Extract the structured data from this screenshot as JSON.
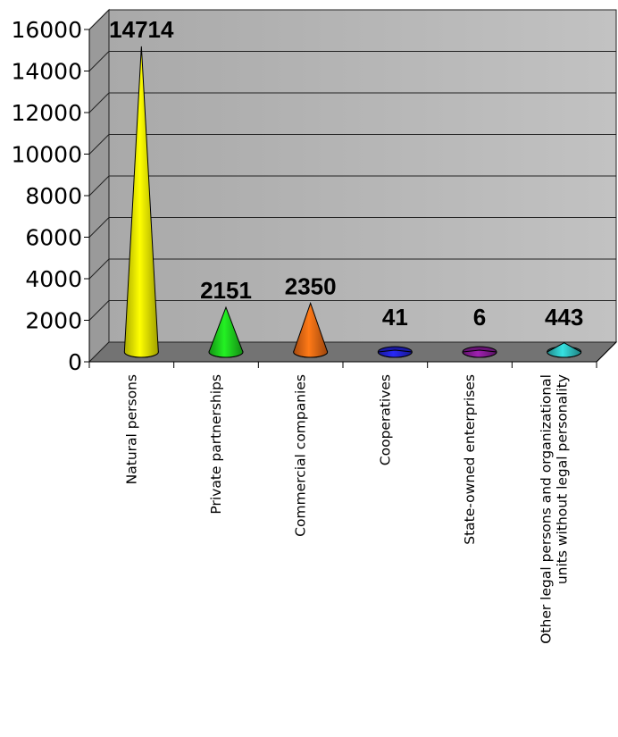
{
  "chart_data": {
    "type": "bar",
    "style": "3d-cone",
    "categories": [
      [
        "Natural persons"
      ],
      [
        "Private partnerships"
      ],
      [
        "Commercial companies"
      ],
      [
        "Cooperatives"
      ],
      [
        "State-owned enterprises"
      ],
      [
        "Other legal persons and organizational",
        "units without legal personality"
      ]
    ],
    "values": [
      14714,
      2151,
      2350,
      41,
      6,
      443
    ],
    "data_labels": [
      "14714",
      "2151",
      "2350",
      "41",
      "6",
      "443"
    ],
    "colors": [
      "#f5f500",
      "#1ed21e",
      "#f06a14",
      "#2323d8",
      "#8a1c9a",
      "#2fc4c4"
    ],
    "yticks": [
      "0",
      "2000",
      "4000",
      "6000",
      "8000",
      "10000",
      "12000",
      "14000",
      "16000"
    ],
    "ylim": [
      0,
      16000
    ],
    "grid": true,
    "legend": "none",
    "title": "",
    "xlabel": "",
    "ylabel": ""
  }
}
